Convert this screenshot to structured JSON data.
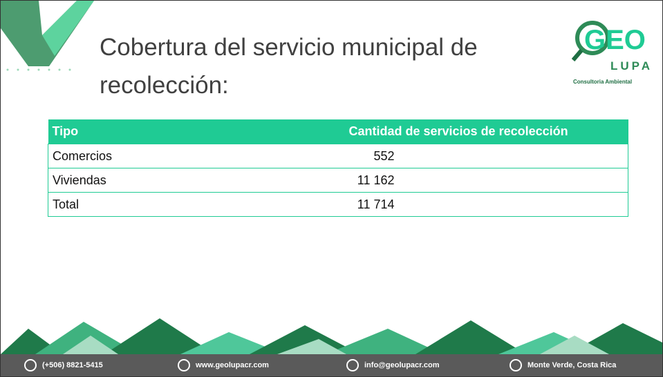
{
  "header": {
    "title": "Cobertura del servicio municipal de recolección:"
  },
  "logo": {
    "name_top": "GEO",
    "name_bottom": "LUPA",
    "tagline": "Consultoria Ambiental"
  },
  "table": {
    "columns": [
      "Tipo",
      "Cantidad de servicios de recolección"
    ],
    "rows": [
      [
        "Comercios",
        "552"
      ],
      [
        "Viviendas",
        "11 162"
      ],
      [
        "Total",
        "11 714"
      ]
    ]
  },
  "footer": {
    "phone": "(+506) 8821-5415",
    "web": "www.geolupacr.com",
    "email": "info@geolupacr.com",
    "location": "Monte Verde, Costa Rica"
  }
}
